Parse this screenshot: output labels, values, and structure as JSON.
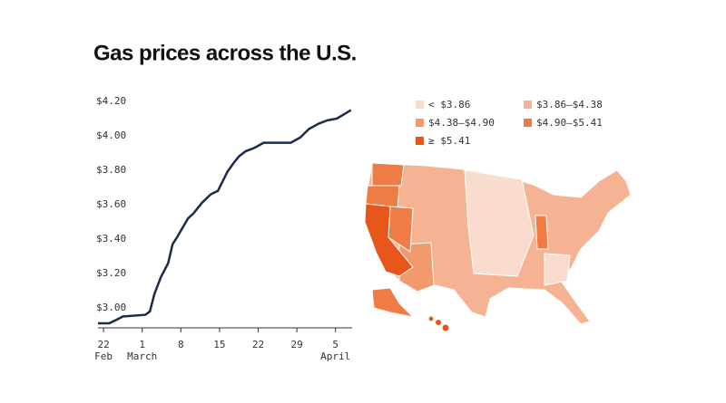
{
  "title": "Gas prices across the U.S.",
  "chart_data": [
    {
      "type": "line",
      "x": [
        21,
        23,
        24.3,
        25.5,
        29.6,
        30.4,
        31.2,
        32.4,
        33.7,
        34.5,
        35.3,
        36.2,
        37.3,
        38.3,
        39.8,
        41.4,
        42.7,
        44.4,
        45.5,
        46.5,
        47.7,
        49.3,
        51,
        52.6,
        54.3,
        55.9,
        57.6,
        59.2,
        60.9,
        62.5,
        64.2,
        65.8,
        66.8
      ],
      "series": [
        {
          "color": "#1b2a4a",
          "values": [
            2.91,
            2.91,
            2.93,
            2.95,
            2.96,
            2.98,
            3.08,
            3.18,
            3.26,
            3.37,
            3.41,
            3.46,
            3.52,
            3.55,
            3.61,
            3.66,
            3.68,
            3.79,
            3.84,
            3.88,
            3.91,
            3.93,
            3.96,
            3.96,
            3.96,
            3.96,
            3.99,
            4.04,
            4.07,
            4.09,
            4.1,
            4.13,
            4.15
          ]
        }
      ],
      "xlim": [
        21,
        67
      ],
      "xticks": [
        {
          "value": 22,
          "label": "22"
        },
        {
          "value": 29,
          "label": "1"
        },
        {
          "value": 36,
          "label": "8"
        },
        {
          "value": 43,
          "label": "15"
        },
        {
          "value": 50,
          "label": "22"
        },
        {
          "value": 57,
          "label": "29"
        },
        {
          "value": 64,
          "label": "5"
        }
      ],
      "x_month_labels": [
        {
          "value": 22,
          "label": "Feb"
        },
        {
          "value": 29,
          "label": "March"
        },
        {
          "value": 64,
          "label": "April"
        }
      ],
      "ylim": [
        2.884,
        4.2
      ],
      "yticks": [
        {
          "value": 3.0,
          "label": "$3.00"
        },
        {
          "value": 3.2,
          "label": "$3.20"
        },
        {
          "value": 3.4,
          "label": "$3.40"
        },
        {
          "value": 3.6,
          "label": "$3.60"
        },
        {
          "value": 3.8,
          "label": "$3.80"
        },
        {
          "value": 4.0,
          "label": "$4.00"
        },
        {
          "value": 4.2,
          "label": "$4.20"
        }
      ],
      "grid": false
    },
    {
      "type": "choropleth",
      "legend": [
        {
          "label": "< $3.86",
          "color": "#f9dccd"
        },
        {
          "label": "$3.86–$4.38",
          "color": "#f6b393"
        },
        {
          "label": "$4.38–$4.90",
          "color": "#f3996e"
        },
        {
          "label": "$4.90–$5.41",
          "color": "#ef7b45"
        },
        {
          "label": "≥ $5.41",
          "color": "#e7561b"
        }
      ]
    }
  ]
}
